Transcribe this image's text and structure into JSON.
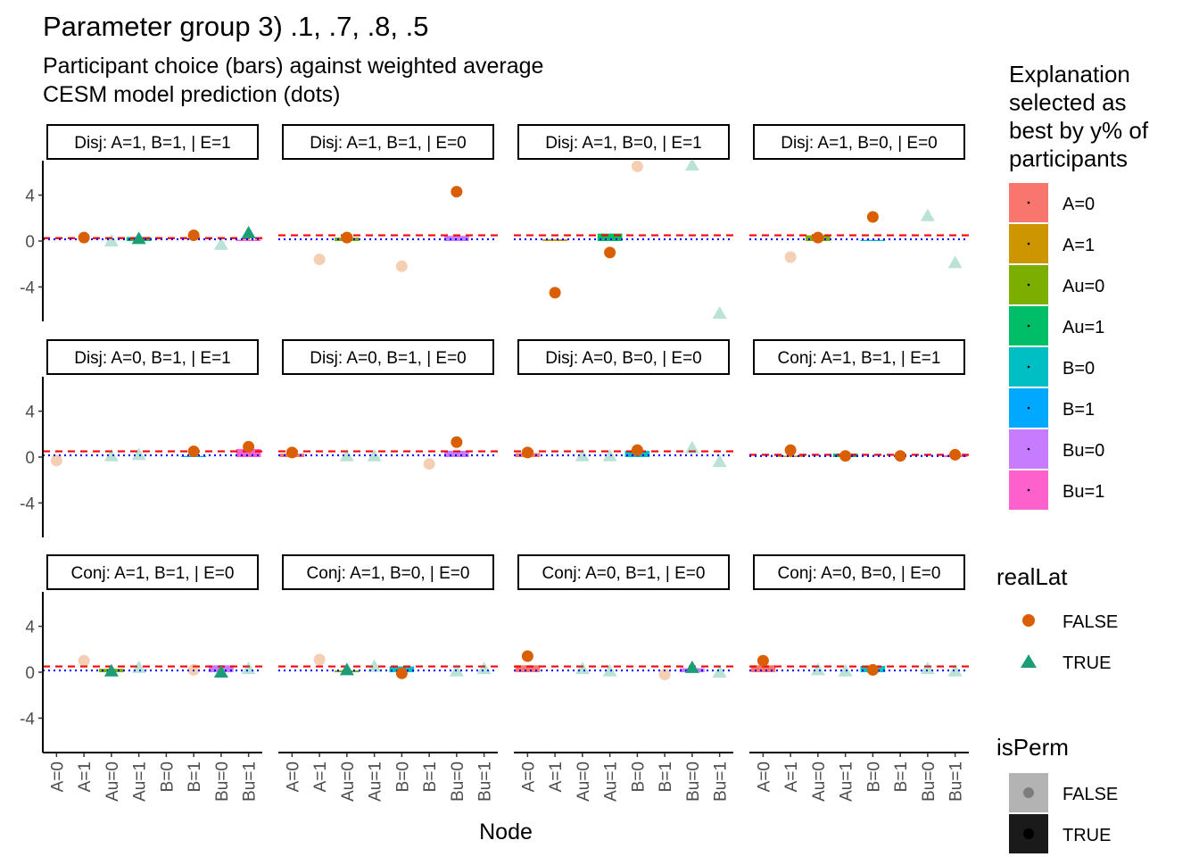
{
  "chart_data": {
    "type": "bar",
    "title": "Parameter group 3) .1, .7, .8, .5",
    "subtitle_lines": [
      "Participant choice (bars) against weighted average",
      "CESM model prediction (dots)"
    ],
    "xlabel": "Node",
    "ylabel": "",
    "ylim": [
      -7,
      7
    ],
    "yticks": [
      -4,
      0,
      4
    ],
    "ytick_labels": [
      "-4",
      "0",
      "4"
    ],
    "categories": [
      "A=0",
      "A=1",
      "Au=0",
      "Au=1",
      "B=0",
      "B=1",
      "Bu=0",
      "Bu=1"
    ],
    "grid": false,
    "legend_placement": "right",
    "colors": {
      "A=0": "#F8766D",
      "A=1": "#CD9600",
      "Au=0": "#7CAE00",
      "Au=1": "#00BE67",
      "B=0": "#00BFC4",
      "B=1": "#00A9FF",
      "Bu=0": "#C77CFF",
      "Bu=1": "#FF61CC",
      "realLat_FALSE": "#D95F02",
      "realLat_TRUE": "#1B9E77",
      "ref_dashed": "#FF0000",
      "ref_dotted": "#0000FF"
    },
    "legends": {
      "fill": {
        "title_lines": [
          "Explanation",
          "selected as",
          "best by y% of",
          "participants"
        ],
        "items": [
          "A=0",
          "A=1",
          "Au=0",
          "Au=1",
          "B=0",
          "B=1",
          "Bu=0",
          "Bu=1"
        ]
      },
      "realLat": {
        "title": "realLat",
        "items": [
          "FALSE",
          "TRUE"
        ]
      },
      "isPerm": {
        "title": "isPerm",
        "items": [
          "FALSE",
          "TRUE"
        ]
      }
    },
    "panels": [
      {
        "label": "Disj: A=1, B=1, | E=1",
        "dashed": 0.25,
        "dotted": 0.15,
        "bars": [
          0,
          0,
          0,
          0.35,
          0,
          0,
          0,
          0.12
        ],
        "points": [
          [
            1,
            0.3,
            "F",
            true
          ],
          [
            2,
            0,
            "T",
            false
          ],
          [
            3,
            0.2,
            "T",
            true
          ],
          [
            5,
            0.5,
            "F",
            true
          ],
          [
            6,
            -0.3,
            "T",
            false
          ],
          [
            7,
            0.7,
            "T",
            true
          ]
        ]
      },
      {
        "label": "Disj: A=1, B=1, | E=0",
        "dashed": 0.5,
        "dotted": 0.15,
        "bars": [
          0,
          0,
          0.3,
          0,
          0,
          0,
          0.45,
          0
        ],
        "points": [
          [
            1,
            -1.6,
            "F",
            false
          ],
          [
            2,
            0.3,
            "F",
            true
          ],
          [
            4,
            -2.2,
            "F",
            false
          ],
          [
            6,
            4.3,
            "F",
            true
          ]
        ]
      },
      {
        "label": "Disj: A=1, B=0, | E=1",
        "dashed": 0.5,
        "dotted": 0.15,
        "bars": [
          0,
          0.15,
          0,
          0.65,
          0,
          0,
          0,
          0
        ],
        "points": [
          [
            1,
            -4.5,
            "F",
            true
          ],
          [
            3,
            -1.0,
            "F",
            true
          ],
          [
            4,
            6.5,
            "F",
            false
          ],
          [
            6,
            6.6,
            "T",
            false
          ],
          [
            7,
            -6.3,
            "T",
            false
          ]
        ]
      },
      {
        "label": "Disj: A=1, B=0, | E=0",
        "dashed": 0.5,
        "dotted": 0.15,
        "bars": [
          0,
          0,
          0.5,
          0,
          0.1,
          0,
          0,
          0
        ],
        "points": [
          [
            1,
            -1.4,
            "F",
            false
          ],
          [
            2,
            0.3,
            "F",
            true
          ],
          [
            4,
            2.1,
            "F",
            true
          ],
          [
            6,
            2.2,
            "T",
            false
          ],
          [
            7,
            -1.9,
            "T",
            false
          ]
        ]
      },
      {
        "label": "Disj: A=0, B=1, | E=1",
        "dashed": 0.5,
        "dotted": 0.15,
        "bars": [
          0,
          0,
          0,
          0,
          0,
          0.1,
          0,
          0.7
        ],
        "points": [
          [
            0,
            -0.3,
            "F",
            false
          ],
          [
            2,
            0.1,
            "T",
            false
          ],
          [
            3,
            0.2,
            "T",
            false
          ],
          [
            5,
            0.5,
            "F",
            true
          ],
          [
            7,
            0.9,
            "F",
            true
          ]
        ]
      },
      {
        "label": "Disj: A=0, B=1, | E=0",
        "dashed": 0.5,
        "dotted": 0.15,
        "bars": [
          0.3,
          0,
          0,
          0,
          0,
          0,
          0.55,
          0
        ],
        "points": [
          [
            0,
            0.4,
            "F",
            true
          ],
          [
            2,
            0.1,
            "T",
            false
          ],
          [
            3,
            0.1,
            "T",
            false
          ],
          [
            5,
            -0.6,
            "F",
            false
          ],
          [
            6,
            1.3,
            "F",
            true
          ]
        ]
      },
      {
        "label": "Disj: A=0, B=0, | E=0",
        "dashed": 0.5,
        "dotted": 0.15,
        "bars": [
          0.35,
          0,
          0,
          0,
          0.55,
          0,
          0,
          0
        ],
        "points": [
          [
            0,
            0.4,
            "F",
            true
          ],
          [
            2,
            0.1,
            "T",
            false
          ],
          [
            3,
            0.1,
            "T",
            false
          ],
          [
            4,
            0.6,
            "F",
            true
          ],
          [
            6,
            0.8,
            "T",
            false
          ],
          [
            7,
            -0.4,
            "T",
            false
          ]
        ]
      },
      {
        "label": "Conj: A=1, B=1, | E=1",
        "dashed": 0.2,
        "dotted": 0.1,
        "bars": [
          0,
          0.12,
          0,
          0.3,
          0,
          0,
          0,
          0.15
        ],
        "points": [
          [
            1,
            0.6,
            "F",
            true
          ],
          [
            3,
            0.1,
            "F",
            true
          ],
          [
            5,
            0.1,
            "F",
            true
          ],
          [
            7,
            0.2,
            "F",
            true
          ]
        ]
      },
      {
        "label": "Conj: A=1, B=1, | E=0",
        "dashed": 0.5,
        "dotted": 0.15,
        "bars": [
          0,
          0,
          0.3,
          0,
          0,
          0,
          0.6,
          0
        ],
        "points": [
          [
            1,
            1.0,
            "F",
            false
          ],
          [
            2,
            0.1,
            "T",
            true
          ],
          [
            3,
            0.4,
            "T",
            false
          ],
          [
            5,
            0.2,
            "F",
            false
          ],
          [
            6,
            0.0,
            "T",
            true
          ],
          [
            7,
            0.3,
            "T",
            false
          ]
        ]
      },
      {
        "label": "Conj: A=1, B=0, | E=0",
        "dashed": 0.5,
        "dotted": 0.15,
        "bars": [
          0,
          0,
          0.15,
          0,
          0.5,
          0,
          0,
          0
        ],
        "points": [
          [
            1,
            1.1,
            "F",
            false
          ],
          [
            2,
            0.2,
            "T",
            true
          ],
          [
            3,
            0.5,
            "T",
            false
          ],
          [
            4,
            -0.1,
            "F",
            true
          ],
          [
            6,
            0.1,
            "T",
            false
          ],
          [
            7,
            0.3,
            "T",
            false
          ]
        ]
      },
      {
        "label": "Conj: A=0, B=1, | E=0",
        "dashed": 0.5,
        "dotted": 0.15,
        "bars": [
          0.6,
          0,
          0,
          0,
          0,
          0,
          0.35,
          0
        ],
        "points": [
          [
            0,
            1.4,
            "F",
            true
          ],
          [
            2,
            0.3,
            "T",
            false
          ],
          [
            3,
            0.1,
            "T",
            false
          ],
          [
            5,
            -0.2,
            "F",
            false
          ],
          [
            6,
            0.4,
            "T",
            true
          ],
          [
            7,
            0.0,
            "T",
            false
          ]
        ]
      },
      {
        "label": "Conj: A=0, B=0, | E=0",
        "dashed": 0.5,
        "dotted": 0.15,
        "bars": [
          0.6,
          0,
          0,
          0,
          0.55,
          0,
          0,
          0
        ],
        "points": [
          [
            0,
            1.0,
            "F",
            true
          ],
          [
            2,
            0.2,
            "T",
            false
          ],
          [
            3,
            0.1,
            "T",
            false
          ],
          [
            4,
            0.2,
            "F",
            true
          ],
          [
            6,
            0.3,
            "T",
            false
          ],
          [
            7,
            0.1,
            "T",
            false
          ]
        ]
      }
    ]
  }
}
